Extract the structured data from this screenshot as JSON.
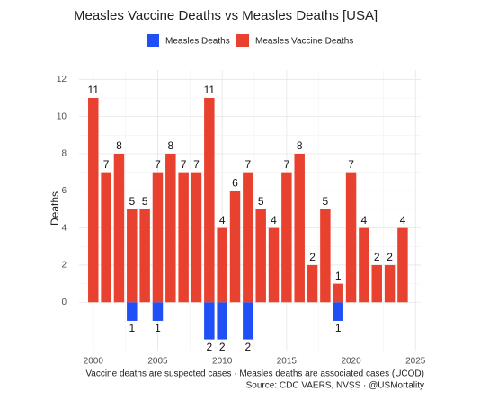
{
  "chart_data": {
    "type": "bar",
    "title": "Measles Vaccine Deaths vs Measles Deaths [USA]",
    "ylabel": "Deaths",
    "caption": [
      "Vaccine deaths are suspected cases · Measles deaths are associated cases (UCOD)",
      "Source: CDC VAERS, NVSS · @USMortality"
    ],
    "x": [
      2000,
      2001,
      2002,
      2003,
      2004,
      2005,
      2006,
      2007,
      2008,
      2009,
      2010,
      2011,
      2012,
      2013,
      2014,
      2015,
      2016,
      2017,
      2018,
      2019,
      2020,
      2021,
      2022,
      2023,
      2024
    ],
    "series": [
      {
        "name": "Measles Deaths",
        "color": "#1f4ff5",
        "values": [
          null,
          null,
          null,
          -1,
          null,
          -1,
          null,
          null,
          null,
          -2,
          -2,
          null,
          -2,
          null,
          null,
          null,
          null,
          null,
          null,
          -1,
          null,
          null,
          null,
          null,
          null
        ],
        "value_labels": [
          null,
          null,
          null,
          "1",
          null,
          "1",
          null,
          null,
          null,
          "2",
          "2",
          null,
          "2",
          null,
          null,
          null,
          null,
          null,
          null,
          "1",
          null,
          null,
          null,
          null,
          null
        ]
      },
      {
        "name": "Measles Vaccine Deaths",
        "color": "#e8412f",
        "values": [
          11,
          7,
          8,
          5,
          5,
          7,
          8,
          7,
          7,
          11,
          4,
          6,
          7,
          5,
          4,
          7,
          8,
          2,
          5,
          1,
          7,
          4,
          2,
          2,
          4
        ]
      }
    ],
    "xlim": [
      1998.9,
      2025.4
    ],
    "xticks": [
      2000,
      2005,
      2010,
      2015,
      2020,
      2025
    ],
    "ylim": [
      -2.6,
      12.5
    ],
    "yticks": [
      0,
      2,
      4,
      6,
      8,
      10,
      12
    ],
    "grid": true
  }
}
